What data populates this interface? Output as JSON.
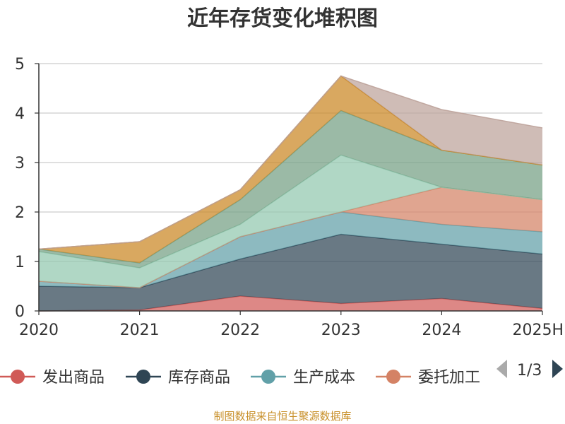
{
  "chart_data": {
    "type": "area",
    "stacked": true,
    "title": "近年存货变化堆积图",
    "x": [
      "2020",
      "2021",
      "2022",
      "2023",
      "2024",
      "2025H"
    ],
    "ylim": [
      0,
      5
    ],
    "yticks": [
      0,
      1,
      2,
      3,
      4,
      5
    ],
    "grid": true,
    "series": [
      {
        "name": "发出商品",
        "color": "#d05a57",
        "values": [
          0,
          0.02,
          0.3,
          0.15,
          0.25,
          0.05
        ]
      },
      {
        "name": "库存商品",
        "color": "#2f4554",
        "values": [
          0.5,
          0.45,
          0.75,
          1.4,
          1.1,
          1.1
        ]
      },
      {
        "name": "生产成本",
        "color": "#61a0a8",
        "values": [
          0.1,
          0.0,
          0.45,
          0.45,
          0.4,
          0.45
        ]
      },
      {
        "name": "委托加工",
        "color": "#d48265",
        "values": [
          0,
          0,
          0,
          0,
          0.75,
          0.65
        ]
      },
      {
        "name": "",
        "color": "#91c7ae",
        "values": [
          0.6,
          0.4,
          0.25,
          1.15,
          0,
          0
        ]
      },
      {
        "name": "",
        "color": "#749f83",
        "values": [
          0.05,
          0.1,
          0.5,
          0.9,
          0.75,
          0.7
        ]
      },
      {
        "name": "",
        "color": "#ca8622",
        "values": [
          0,
          0.43,
          0.2,
          0.7,
          0,
          0
        ]
      },
      {
        "name": "",
        "color": "#bda29a",
        "values": [
          0,
          0,
          0,
          0,
          0.82,
          0.75
        ]
      }
    ],
    "legend": {
      "position": "bottom",
      "items": [
        "发出商品",
        "库存商品",
        "生产成本",
        "委托加工"
      ],
      "page": "1/3"
    }
  },
  "footer": "制图数据来自恒生聚源数据库"
}
